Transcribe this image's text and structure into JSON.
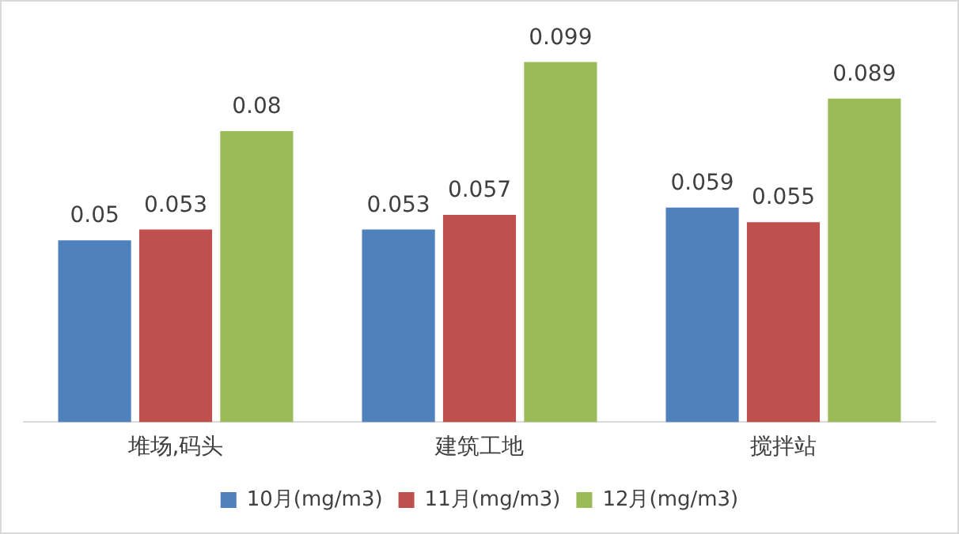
{
  "chart_data": {
    "type": "bar",
    "categories": [
      "堆场,码头",
      "建筑工地",
      "搅拌站"
    ],
    "series": [
      {
        "name": "10月(mg/m3)",
        "color": "#4f81bd",
        "values": [
          0.05,
          0.053,
          0.059
        ]
      },
      {
        "name": "11月(mg/m3)",
        "color": "#c0504d",
        "values": [
          0.053,
          0.057,
          0.055
        ]
      },
      {
        "name": "12月(mg/m3)",
        "color": "#9bbb59",
        "values": [
          0.08,
          0.099,
          0.089
        ]
      }
    ],
    "data_labels": true,
    "legend": "bottom",
    "grid": false
  }
}
